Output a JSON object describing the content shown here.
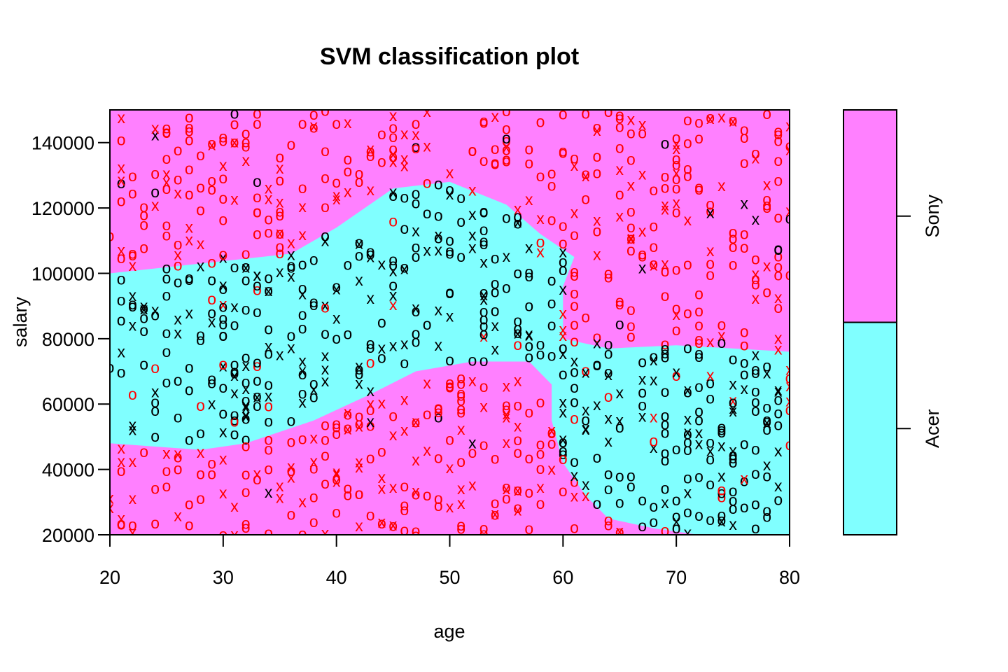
{
  "chart_data": {
    "type": "scatter",
    "title": "SVM classification plot",
    "xlabel": "age",
    "ylabel": "salary",
    "xlim": [
      20,
      80
    ],
    "ylim": [
      20000,
      150000
    ],
    "x_ticks": [
      "20",
      "30",
      "40",
      "50",
      "60",
      "70",
      "80"
    ],
    "x_tick_values": [
      20,
      30,
      40,
      50,
      60,
      70,
      80
    ],
    "y_ticks": [
      "20000",
      "40000",
      "60000",
      "80000",
      "100000",
      "120000",
      "140000"
    ],
    "y_tick_values": [
      20000,
      40000,
      60000,
      80000,
      100000,
      120000,
      140000
    ],
    "grid": false,
    "legend": {
      "placement": "right",
      "entries": [
        {
          "label": "Sony",
          "color": "#FF80FF"
        },
        {
          "label": "Acer",
          "color": "#80FFFF"
        }
      ]
    },
    "classes": [
      "Acer",
      "Sony"
    ],
    "region_colors": {
      "Acer": "#80FFFF",
      "Sony": "#FF80FF"
    },
    "point_colors": {
      "Acer": "#000000",
      "Sony": "#FF0000"
    },
    "point_symbols": {
      "data": "o",
      "support_vector": "x"
    },
    "decision_regions": {
      "Acer": [
        [
          [
            20,
            48000
          ],
          [
            28,
            46000
          ],
          [
            32,
            48000
          ],
          [
            38,
            55000
          ],
          [
            43,
            63000
          ],
          [
            47,
            70000
          ],
          [
            52,
            73000
          ],
          [
            57,
            73000
          ],
          [
            59,
            66000
          ],
          [
            59,
            55000
          ],
          [
            60,
            42000
          ],
          [
            62,
            32000
          ],
          [
            64,
            25000
          ],
          [
            68,
            22000
          ],
          [
            72,
            20000
          ],
          [
            80,
            20000
          ],
          [
            80,
            76000
          ],
          [
            70,
            78000
          ],
          [
            64,
            77000
          ],
          [
            60,
            80000
          ],
          [
            60,
            96000
          ],
          [
            61,
            105000
          ],
          [
            58,
            112000
          ],
          [
            55,
            121000
          ],
          [
            50,
            128000
          ],
          [
            45,
            126000
          ],
          [
            40,
            114000
          ],
          [
            36,
            106000
          ],
          [
            28,
            103000
          ],
          [
            20,
            100000
          ]
        ]
      ]
    },
    "n_points_approx": 1000
  }
}
